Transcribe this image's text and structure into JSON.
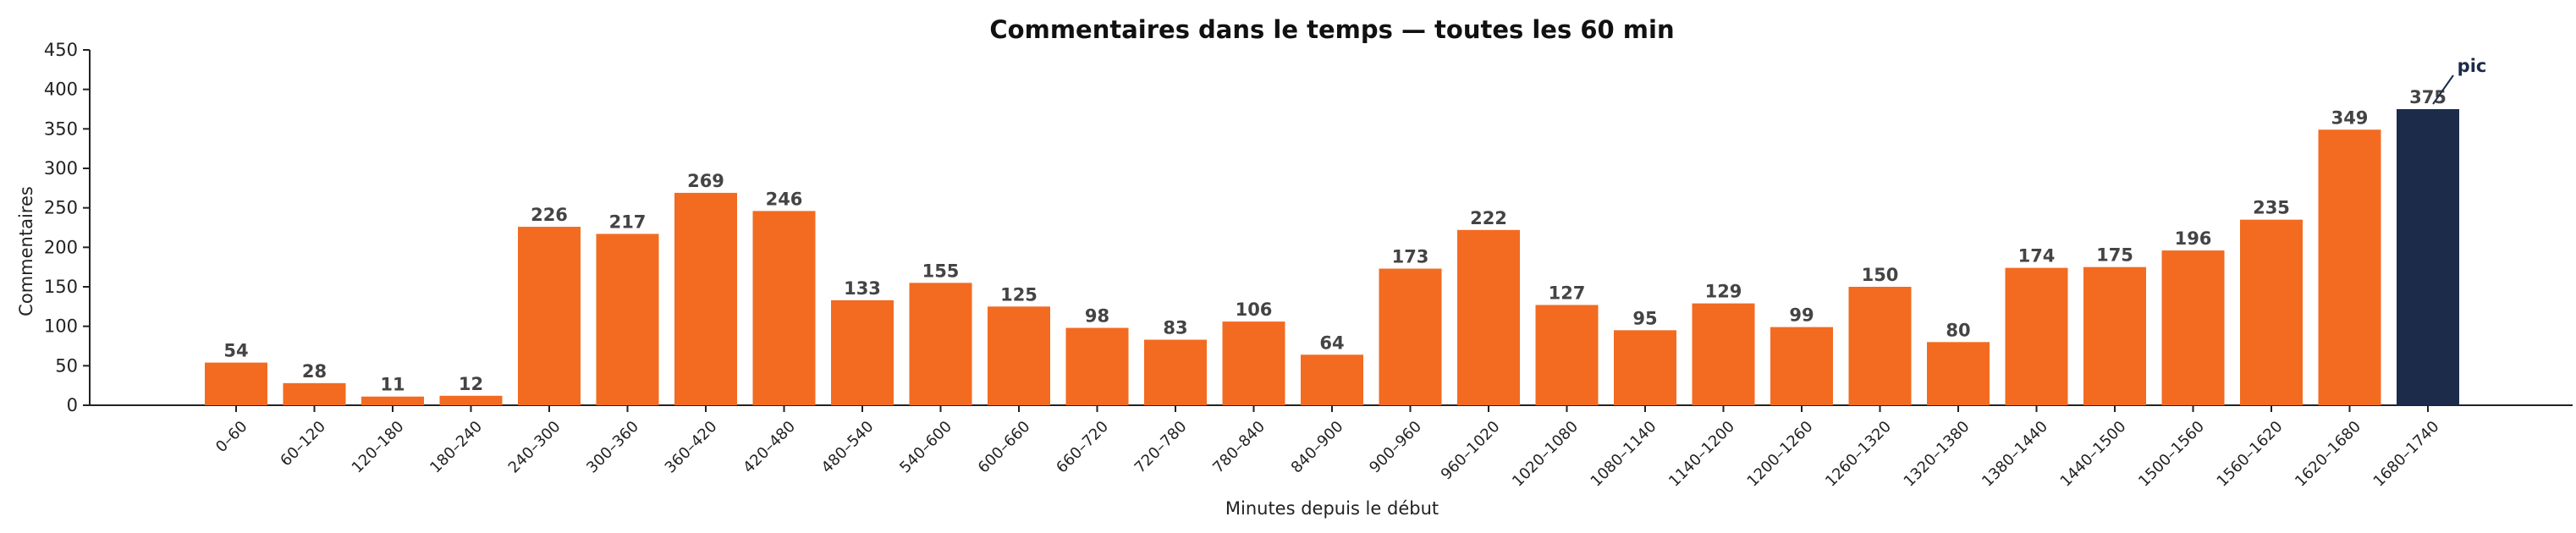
{
  "chart_data": {
    "type": "bar",
    "title": "Commentaires dans le temps — toutes les 60 min",
    "xlabel": "Minutes depuis le début",
    "ylabel": "Commentaires",
    "ylim": [
      0,
      450
    ],
    "yticks": [
      0,
      50,
      100,
      150,
      200,
      250,
      300,
      350,
      400,
      450
    ],
    "grid": false,
    "categories": [
      "0–60",
      "60–120",
      "120–180",
      "180–240",
      "240–300",
      "300–360",
      "360–420",
      "420–480",
      "480–540",
      "540–600",
      "600–660",
      "660–720",
      "720–780",
      "780–840",
      "840–900",
      "900–960",
      "960–1020",
      "1020–1080",
      "1080–1140",
      "1140–1200",
      "1200–1260",
      "1260–1320",
      "1320–1380",
      "1380–1440",
      "1440–1500",
      "1500–1560",
      "1560–1620",
      "1620–1680",
      "1680–1740"
    ],
    "values": [
      54,
      28,
      11,
      12,
      226,
      217,
      269,
      246,
      133,
      155,
      125,
      98,
      83,
      106,
      64,
      173,
      222,
      127,
      95,
      129,
      99,
      150,
      80,
      174,
      175,
      196,
      235,
      349,
      375
    ],
    "bar_color": "#f26b21",
    "highlight_color": "#1c2b4a",
    "highlight_index": 28,
    "annotation": {
      "text": "pic",
      "category": "1680–1740"
    }
  }
}
